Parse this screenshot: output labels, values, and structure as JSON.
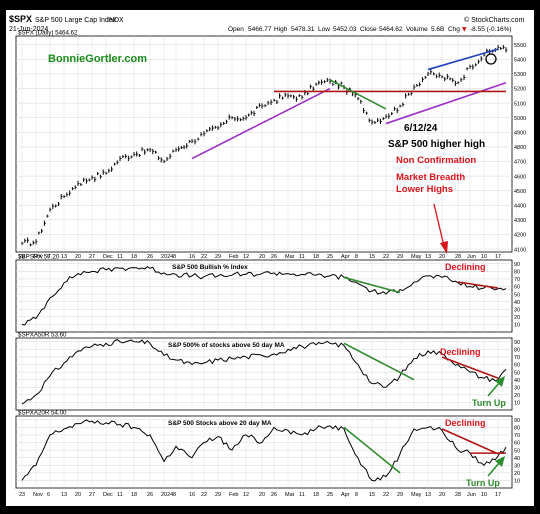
{
  "header": {
    "symbol": "$SPX",
    "name": "S&P 500 Large Cap Index",
    "exchange": "INDX",
    "date": "21-Jun-2024",
    "brand": "© StockCharts.com",
    "open_label": "Open",
    "open": "5466.77",
    "high_label": "High",
    "high": "5478.31",
    "low_label": "Low",
    "low": "5452.03",
    "close_label": "Close",
    "close": "5464.62",
    "volume_label": "Volume",
    "volume": "5.6B",
    "chg_label": "Chg",
    "chg": "-8.55 (-0.16%)",
    "chg_arrow": "▼"
  },
  "watermark": "BonnieGortler.com",
  "annotations": {
    "date_note": "6/12/24",
    "higher_high": "S&P 500 higher high",
    "non_confirmation": "Non Confirmation",
    "breadth_line1": "Market Breadth",
    "breadth_line2": "Lower Highs",
    "declining_1": "Declining",
    "declining_2": "Declining",
    "declining_3": "Declining",
    "turn_up_1": "Turn Up",
    "turn_up_2": "Turn Up"
  },
  "colors": {
    "price": "#000000",
    "indicator": "#000000",
    "support_trend": "#9b30c9",
    "upper_trend": "#1f3fbf",
    "resistance": "#b01515",
    "green_trend": "#2e8b2e",
    "red_text": "#d8141b",
    "watermark": "#1a8a1a",
    "frame": "#000000",
    "background": "#ffffff",
    "grid": "#d6d6d6"
  },
  "chart_data": [
    {
      "type": "line",
      "panel": "price",
      "legend": "$SPX (Daily) 5464.62",
      "ylim": [
        4080,
        5560
      ],
      "yticks": [
        4100,
        4200,
        4300,
        4400,
        4500,
        4600,
        4700,
        4800,
        4900,
        5000,
        5100,
        5200,
        5300,
        5400,
        5500
      ],
      "x": [
        "2023-10-23",
        "2023-10-30",
        "2023-11-06",
        "2023-11-13",
        "2023-11-20",
        "2023-11-27",
        "2023-12-04",
        "2023-12-11",
        "2023-12-18",
        "2023-12-26",
        "2024-01-02",
        "2024-01-08",
        "2024-01-16",
        "2024-01-22",
        "2024-01-29",
        "2024-02-05",
        "2024-02-12",
        "2024-02-20",
        "2024-02-26",
        "2024-03-04",
        "2024-03-11",
        "2024-03-18",
        "2024-03-25",
        "2024-04-01",
        "2024-04-08",
        "2024-04-15",
        "2024-04-22",
        "2024-04-29",
        "2024-05-06",
        "2024-05-13",
        "2024-05-20",
        "2024-05-28",
        "2024-06-03",
        "2024-06-10",
        "2024-06-17",
        "2024-06-21"
      ],
      "values": [
        4140,
        4150,
        4370,
        4460,
        4550,
        4590,
        4620,
        4720,
        4750,
        4780,
        4700,
        4780,
        4840,
        4890,
        4930,
        5000,
        5000,
        5080,
        5120,
        5150,
        5140,
        5230,
        5250,
        5210,
        5130,
        4970,
        5010,
        5080,
        5210,
        5300,
        5280,
        5240,
        5350,
        5430,
        5480,
        5464.62
      ]
    },
    {
      "type": "line",
      "panel": "bullish_percent",
      "title": "S&P 500 Bullish % Index",
      "legend": "$BPSPX 57.20",
      "ylim": [
        0,
        95
      ],
      "yticks": [
        10,
        20,
        30,
        40,
        50,
        60,
        70,
        80,
        90
      ],
      "x": [
        "2023-10-23",
        "2023-10-30",
        "2023-11-06",
        "2023-11-13",
        "2023-11-20",
        "2023-11-27",
        "2023-12-04",
        "2023-12-11",
        "2023-12-18",
        "2023-12-26",
        "2024-01-02",
        "2024-01-08",
        "2024-01-16",
        "2024-01-22",
        "2024-01-29",
        "2024-02-05",
        "2024-02-12",
        "2024-02-20",
        "2024-02-26",
        "2024-03-04",
        "2024-03-11",
        "2024-03-18",
        "2024-03-25",
        "2024-04-01",
        "2024-04-08",
        "2024-04-15",
        "2024-04-22",
        "2024-04-29",
        "2024-05-06",
        "2024-05-13",
        "2024-05-20",
        "2024-05-28",
        "2024-06-03",
        "2024-06-10",
        "2024-06-17",
        "2024-06-21"
      ],
      "values": [
        10,
        18,
        45,
        65,
        77,
        80,
        82,
        84,
        85,
        84,
        78,
        76,
        74,
        73,
        74,
        75,
        76,
        77,
        78,
        77,
        76,
        75,
        74,
        72,
        64,
        54,
        50,
        56,
        66,
        74,
        72,
        65,
        60,
        58,
        57,
        57.2
      ]
    },
    {
      "type": "line",
      "panel": "above_50dma",
      "title": "S&P 500% of stocks above 50 day MA",
      "legend": "$SPXA50R 53.60",
      "ylim": [
        0,
        95
      ],
      "yticks": [
        10,
        20,
        30,
        40,
        50,
        60,
        70,
        80,
        90
      ],
      "x": [
        "2023-10-23",
        "2023-10-30",
        "2023-11-06",
        "2023-11-13",
        "2023-11-20",
        "2023-11-27",
        "2023-12-04",
        "2023-12-11",
        "2023-12-18",
        "2023-12-26",
        "2024-01-02",
        "2024-01-08",
        "2024-01-16",
        "2024-01-22",
        "2024-01-29",
        "2024-02-05",
        "2024-02-12",
        "2024-02-20",
        "2024-02-26",
        "2024-03-04",
        "2024-03-11",
        "2024-03-18",
        "2024-03-25",
        "2024-04-01",
        "2024-04-08",
        "2024-04-15",
        "2024-04-22",
        "2024-04-29",
        "2024-05-06",
        "2024-05-13",
        "2024-05-20",
        "2024-05-28",
        "2024-06-03",
        "2024-06-10",
        "2024-06-17",
        "2024-06-21"
      ],
      "values": [
        8,
        20,
        45,
        62,
        78,
        84,
        88,
        90,
        90,
        88,
        72,
        66,
        60,
        62,
        66,
        68,
        70,
        72,
        74,
        80,
        84,
        86,
        88,
        85,
        60,
        35,
        30,
        45,
        68,
        78,
        74,
        60,
        50,
        42,
        40,
        53.6
      ]
    },
    {
      "type": "line",
      "panel": "above_20dma",
      "title": "S&P 500 Stocks above 20 day MA",
      "legend": "$SPXA20R 54.00",
      "ylim": [
        0,
        95
      ],
      "yticks": [
        10,
        20,
        30,
        40,
        50,
        60,
        70,
        80,
        90
      ],
      "x": [
        "2023-10-23",
        "2023-10-30",
        "2023-11-06",
        "2023-11-13",
        "2023-11-20",
        "2023-11-27",
        "2023-12-04",
        "2023-12-11",
        "2023-12-18",
        "2023-12-26",
        "2024-01-02",
        "2024-01-08",
        "2024-01-16",
        "2024-01-22",
        "2024-01-29",
        "2024-02-05",
        "2024-02-12",
        "2024-02-20",
        "2024-02-26",
        "2024-03-04",
        "2024-03-11",
        "2024-03-18",
        "2024-03-25",
        "2024-04-01",
        "2024-04-08",
        "2024-04-15",
        "2024-04-22",
        "2024-04-29",
        "2024-05-06",
        "2024-05-13",
        "2024-05-20",
        "2024-05-28",
        "2024-06-03",
        "2024-06-10",
        "2024-06-17",
        "2024-06-21"
      ],
      "values": [
        10,
        30,
        70,
        78,
        85,
        88,
        86,
        84,
        80,
        70,
        35,
        55,
        40,
        60,
        68,
        50,
        70,
        60,
        80,
        76,
        70,
        78,
        82,
        78,
        40,
        10,
        15,
        45,
        78,
        80,
        76,
        50,
        46,
        30,
        42,
        54.0
      ]
    }
  ],
  "xaxis_labels": [
    {
      "date": "2023-10-23",
      "text": "23"
    },
    {
      "date": "2023-10-30",
      "text": "Nov"
    },
    {
      "date": "2023-11-06",
      "text": "6"
    },
    {
      "date": "2023-11-13",
      "text": "13"
    },
    {
      "date": "2023-11-20",
      "text": "20"
    },
    {
      "date": "2023-11-27",
      "text": "27"
    },
    {
      "date": "2023-12-04",
      "text": "Dec"
    },
    {
      "date": "2023-12-11",
      "text": "11"
    },
    {
      "date": "2023-12-18",
      "text": "18"
    },
    {
      "date": "2023-12-26",
      "text": "26"
    },
    {
      "date": "2024-01-02",
      "text": "2024"
    },
    {
      "date": "2024-01-08",
      "text": "8"
    },
    {
      "date": "2024-01-16",
      "text": "16"
    },
    {
      "date": "2024-01-22",
      "text": "22"
    },
    {
      "date": "2024-01-29",
      "text": "29"
    },
    {
      "date": "2024-02-05",
      "text": "Feb"
    },
    {
      "date": "2024-02-12",
      "text": "12"
    },
    {
      "date": "2024-02-20",
      "text": "20"
    },
    {
      "date": "2024-02-26",
      "text": "26"
    },
    {
      "date": "2024-03-04",
      "text": "Mar"
    },
    {
      "date": "2024-03-11",
      "text": "11"
    },
    {
      "date": "2024-03-18",
      "text": "18"
    },
    {
      "date": "2024-03-25",
      "text": "25"
    },
    {
      "date": "2024-04-01",
      "text": "Apr"
    },
    {
      "date": "2024-04-08",
      "text": "8"
    },
    {
      "date": "2024-04-15",
      "text": "15"
    },
    {
      "date": "2024-04-22",
      "text": "22"
    },
    {
      "date": "2024-04-29",
      "text": "29"
    },
    {
      "date": "2024-05-06",
      "text": "May"
    },
    {
      "date": "2024-05-13",
      "text": "13"
    },
    {
      "date": "2024-05-20",
      "text": "20"
    },
    {
      "date": "2024-05-28",
      "text": "28"
    },
    {
      "date": "2024-06-03",
      "text": "Jun"
    },
    {
      "date": "2024-06-10",
      "text": "10"
    },
    {
      "date": "2024-06-17",
      "text": "17"
    }
  ],
  "trendlines": [
    {
      "name": "price-support-trend",
      "panel": "price",
      "color": "support_trend",
      "from": [
        "2024-01-16",
        4720
      ],
      "to": [
        "2024-03-25",
        5200
      ]
    },
    {
      "name": "price-support-trend-2",
      "panel": "price",
      "color": "support_trend",
      "from": [
        "2024-04-22",
        4960
      ],
      "to": [
        "2024-06-21",
        5240
      ]
    },
    {
      "name": "price-upper-trend",
      "panel": "price",
      "color": "upper_trend",
      "from": [
        "2024-05-13",
        5330
      ],
      "to": [
        "2024-06-17",
        5470
      ]
    },
    {
      "name": "price-resistance",
      "panel": "price",
      "color": "resistance",
      "from": [
        "2024-02-26",
        5180
      ],
      "to": [
        "2024-06-21",
        5180
      ]
    },
    {
      "name": "price-green-trend",
      "panel": "price",
      "color": "green_trend",
      "from": [
        "2024-03-25",
        5260
      ],
      "to": [
        "2024-04-22",
        5060
      ]
    },
    {
      "name": "bp-green-trend",
      "panel": "bullish_percent",
      "color": "green_trend",
      "from": [
        "2024-04-01",
        72
      ],
      "to": [
        "2024-04-29",
        52
      ]
    },
    {
      "name": "bp-red-trend",
      "panel": "bullish_percent",
      "color": "resistance",
      "from": [
        "2024-05-28",
        66
      ],
      "to": [
        "2024-06-17",
        58
      ]
    },
    {
      "name": "a50-green-trend",
      "panel": "above_50dma",
      "color": "green_trend",
      "from": [
        "2024-04-01",
        88
      ],
      "to": [
        "2024-05-06",
        40
      ]
    },
    {
      "name": "a50-red-trend",
      "panel": "above_50dma",
      "color": "resistance",
      "from": [
        "2024-05-20",
        70
      ],
      "to": [
        "2024-06-17",
        42
      ]
    },
    {
      "name": "a20-green-trend",
      "panel": "above_20dma",
      "color": "green_trend",
      "from": [
        "2024-04-01",
        80
      ],
      "to": [
        "2024-04-29",
        20
      ]
    },
    {
      "name": "a20-red-trend",
      "panel": "above_20dma",
      "color": "resistance",
      "from": [
        "2024-05-20",
        78
      ],
      "to": [
        "2024-06-17",
        45
      ]
    },
    {
      "name": "a20-resistance",
      "panel": "above_20dma",
      "color": "resistance",
      "from": [
        "2024-06-03",
        46
      ],
      "to": [
        "2024-06-21",
        46
      ]
    }
  ]
}
